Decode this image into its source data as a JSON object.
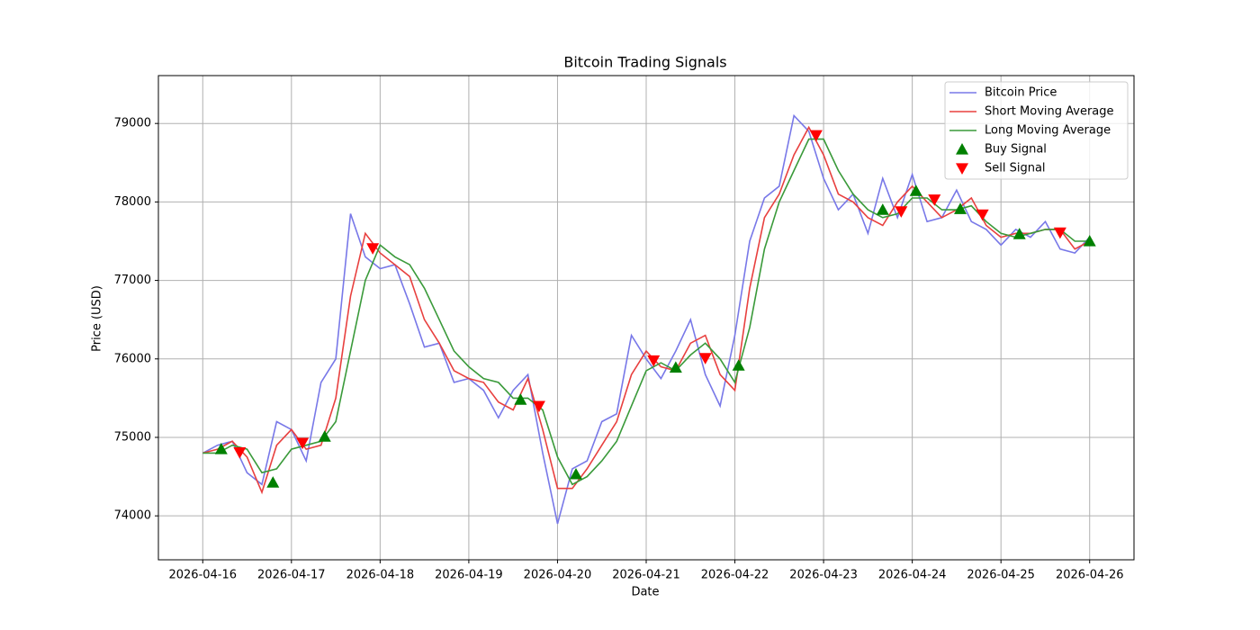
{
  "chart_data": {
    "type": "line",
    "title": "Bitcoin Trading Signals",
    "x_label": "Date",
    "y_label": "Price (USD)",
    "x": [
      "2026-04-16T00:00",
      "2026-04-16T04:00",
      "2026-04-16T08:00",
      "2026-04-16T12:00",
      "2026-04-16T16:00",
      "2026-04-16T20:00",
      "2026-04-17T00:00",
      "2026-04-17T04:00",
      "2026-04-17T08:00",
      "2026-04-17T12:00",
      "2026-04-17T16:00",
      "2026-04-17T20:00",
      "2026-04-18T00:00",
      "2026-04-18T04:00",
      "2026-04-18T08:00",
      "2026-04-18T12:00",
      "2026-04-18T16:00",
      "2026-04-18T20:00",
      "2026-04-19T00:00",
      "2026-04-19T04:00",
      "2026-04-19T08:00",
      "2026-04-19T12:00",
      "2026-04-19T16:00",
      "2026-04-19T20:00",
      "2026-04-20T00:00",
      "2026-04-20T04:00",
      "2026-04-20T08:00",
      "2026-04-20T12:00",
      "2026-04-20T16:00",
      "2026-04-20T20:00",
      "2026-04-21T00:00",
      "2026-04-21T04:00",
      "2026-04-21T08:00",
      "2026-04-21T12:00",
      "2026-04-21T16:00",
      "2026-04-21T20:00",
      "2026-04-22T00:00",
      "2026-04-22T04:00",
      "2026-04-22T08:00",
      "2026-04-22T12:00",
      "2026-04-22T16:00",
      "2026-04-22T20:00",
      "2026-04-23T00:00",
      "2026-04-23T04:00",
      "2026-04-23T08:00",
      "2026-04-23T12:00",
      "2026-04-23T16:00",
      "2026-04-23T20:00",
      "2026-04-24T00:00",
      "2026-04-24T04:00",
      "2026-04-24T08:00",
      "2026-04-24T12:00",
      "2026-04-24T16:00",
      "2026-04-24T20:00",
      "2026-04-25T00:00",
      "2026-04-25T04:00",
      "2026-04-25T08:00",
      "2026-04-25T12:00",
      "2026-04-25T16:00",
      "2026-04-25T20:00",
      "2026-04-26T00:00"
    ],
    "series": [
      {
        "name": "Bitcoin Price",
        "color": "#7878e8",
        "values": [
          74800,
          74900,
          74950,
          74550,
          74400,
          75200,
          75100,
          74700,
          75700,
          76000,
          77850,
          77300,
          77150,
          77200,
          76700,
          76150,
          76200,
          75700,
          75750,
          75600,
          75250,
          75600,
          75800,
          74800,
          73900,
          74600,
          74700,
          75200,
          75300,
          76300,
          76000,
          75750,
          76100,
          76500,
          75800,
          75400,
          76300,
          77500,
          78050,
          78200,
          79100,
          78900,
          78300,
          77900,
          78100,
          77600,
          78300,
          77800,
          78350,
          77750,
          77800,
          78150,
          77750,
          77650,
          77450,
          77650,
          77550,
          77750,
          77400,
          77350,
          77550
        ]
      },
      {
        "name": "Short Moving Average",
        "color": "#e8403f",
        "values": [
          74800,
          74850,
          74950,
          74750,
          74300,
          74900,
          75100,
          74850,
          74900,
          75500,
          76800,
          77600,
          77350,
          77200,
          77050,
          76500,
          76200,
          75850,
          75750,
          75700,
          75450,
          75350,
          75750,
          75100,
          74350,
          74350,
          74600,
          74900,
          75200,
          75800,
          76100,
          75900,
          75850,
          76200,
          76300,
          75800,
          75600,
          76900,
          77800,
          78100,
          78600,
          78950,
          78600,
          78100,
          78000,
          77800,
          77700,
          78000,
          78200,
          78000,
          77800,
          77900,
          78050,
          77700,
          77550,
          77600,
          77600,
          77650,
          77650,
          77400,
          77500
        ]
      },
      {
        "name": "Long Moving Average",
        "color": "#3a9a3a",
        "values": [
          74800,
          74800,
          74900,
          74850,
          74550,
          74600,
          74850,
          74900,
          74950,
          75200,
          76100,
          77000,
          77450,
          77300,
          77200,
          76900,
          76500,
          76100,
          75900,
          75750,
          75700,
          75500,
          75500,
          75350,
          74750,
          74400,
          74500,
          74700,
          74950,
          75400,
          75850,
          75950,
          75850,
          76050,
          76200,
          76000,
          75700,
          76400,
          77400,
          78000,
          78400,
          78800,
          78800,
          78400,
          78100,
          77900,
          77800,
          77850,
          78050,
          78050,
          77900,
          77900,
          77950,
          77750,
          77600,
          77550,
          77600,
          77650,
          77650,
          77500,
          77500
        ]
      },
      {
        "name": "Buy Signal",
        "color": "#008000",
        "marker": "^",
        "x": [
          "2026-04-16T05:00",
          "2026-04-16T19:00",
          "2026-04-17T09:00",
          "2026-04-19T14:00",
          "2026-04-20T05:00",
          "2026-04-21T08:00",
          "2026-04-22T01:00",
          "2026-04-23T16:00",
          "2026-04-24T01:00",
          "2026-04-24T13:00",
          "2026-04-25T05:00",
          "2026-04-26T00:00"
        ],
        "values": [
          74850,
          74425,
          75010,
          75480,
          74530,
          75890,
          75915,
          77900,
          78140,
          77910,
          77590,
          77500
        ]
      },
      {
        "name": "Sell Signal",
        "color": "#ff0000",
        "marker": "v",
        "x": [
          "2026-04-16T10:00",
          "2026-04-17T03:00",
          "2026-04-17T22:00",
          "2026-04-19T19:00",
          "2026-04-21T02:00",
          "2026-04-21T16:00",
          "2026-04-22T22:00",
          "2026-04-23T21:00",
          "2026-04-24T06:00",
          "2026-04-24T19:00",
          "2026-04-25T16:00"
        ],
        "values": [
          74810,
          74930,
          77410,
          75400,
          75980,
          76010,
          78850,
          77880,
          78030,
          77840,
          77610
        ]
      }
    ],
    "xlim": [
      "2026-04-15T12:00",
      "2026-04-26T12:00"
    ],
    "xticks": [
      "2026-04-16",
      "2026-04-17",
      "2026-04-18",
      "2026-04-19",
      "2026-04-20",
      "2026-04-21",
      "2026-04-22",
      "2026-04-23",
      "2026-04-24",
      "2026-04-25",
      "2026-04-26"
    ],
    "ylim": [
      73440,
      79610
    ],
    "yticks": [
      74000,
      75000,
      76000,
      77000,
      78000,
      79000
    ],
    "grid": true,
    "legend": "upper right"
  }
}
